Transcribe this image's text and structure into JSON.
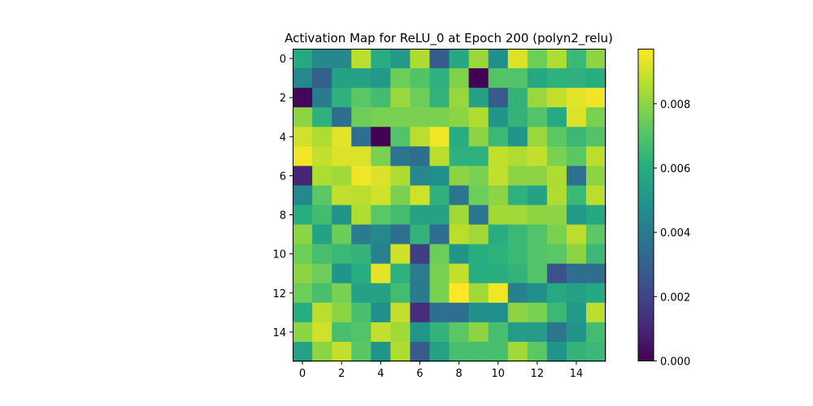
{
  "chart_data": {
    "type": "heatmap",
    "title": "Activation Map for ReLU_0 at Epoch 200 (polyn2_relu)",
    "colormap": "viridis",
    "x_ticks": [
      "0",
      "2",
      "4",
      "6",
      "8",
      "10",
      "12",
      "14"
    ],
    "y_ticks": [
      "0",
      "2",
      "4",
      "6",
      "8",
      "10",
      "12",
      "14"
    ],
    "vmin": 0,
    "vmax": 0.0097,
    "colorbar_ticks": [
      "0.000",
      "0.002",
      "0.004",
      "0.006",
      "0.008"
    ],
    "values": [
      [
        0.0058,
        0.0045,
        0.0045,
        0.0087,
        0.006,
        0.0052,
        0.0085,
        0.0028,
        0.0058,
        0.0082,
        0.0048,
        0.0092,
        0.0075,
        0.0085,
        0.0065,
        0.008
      ],
      [
        0.0045,
        0.003,
        0.0055,
        0.0055,
        0.0052,
        0.0075,
        0.007,
        0.0062,
        0.0078,
        0.0,
        0.007,
        0.007,
        0.0058,
        0.0062,
        0.0062,
        0.006
      ],
      [
        0.0002,
        0.004,
        0.0062,
        0.0072,
        0.0067,
        0.0082,
        0.0075,
        0.0063,
        0.0082,
        0.0055,
        0.0028,
        0.0063,
        0.0082,
        0.0088,
        0.0093,
        0.0095
      ],
      [
        0.008,
        0.0062,
        0.0035,
        0.0075,
        0.0077,
        0.0077,
        0.0077,
        0.0077,
        0.008,
        0.0085,
        0.005,
        0.0063,
        0.007,
        0.0058,
        0.0092,
        0.0077
      ],
      [
        0.009,
        0.0085,
        0.0093,
        0.0035,
        0.0,
        0.007,
        0.0087,
        0.0095,
        0.006,
        0.008,
        0.0065,
        0.005,
        0.0082,
        0.0072,
        0.0065,
        0.007
      ],
      [
        0.0095,
        0.0088,
        0.0092,
        0.0092,
        0.0077,
        0.0038,
        0.0035,
        0.0087,
        0.0062,
        0.0062,
        0.0088,
        0.0085,
        0.0088,
        0.0077,
        0.0072,
        0.0087
      ],
      [
        0.001,
        0.0085,
        0.0083,
        0.0095,
        0.0092,
        0.0085,
        0.0045,
        0.0048,
        0.008,
        0.0077,
        0.0088,
        0.008,
        0.008,
        0.0085,
        0.0035,
        0.008
      ],
      [
        0.0045,
        0.0072,
        0.0088,
        0.0087,
        0.009,
        0.0077,
        0.009,
        0.0062,
        0.0038,
        0.0075,
        0.008,
        0.0062,
        0.0055,
        0.0085,
        0.0065,
        0.0087
      ],
      [
        0.006,
        0.0067,
        0.005,
        0.0085,
        0.0072,
        0.0067,
        0.0055,
        0.0055,
        0.0083,
        0.0038,
        0.0083,
        0.0083,
        0.008,
        0.008,
        0.0052,
        0.0058
      ],
      [
        0.008,
        0.0055,
        0.0075,
        0.004,
        0.0045,
        0.0035,
        0.0063,
        0.0035,
        0.0087,
        0.0083,
        0.006,
        0.0065,
        0.007,
        0.0077,
        0.0087,
        0.0072
      ],
      [
        0.0075,
        0.0068,
        0.0065,
        0.0063,
        0.0043,
        0.009,
        0.0018,
        0.0075,
        0.005,
        0.006,
        0.0062,
        0.0065,
        0.007,
        0.0072,
        0.008,
        0.0065
      ],
      [
        0.008,
        0.0075,
        0.005,
        0.006,
        0.0093,
        0.0062,
        0.004,
        0.0077,
        0.0088,
        0.006,
        0.006,
        0.0063,
        0.007,
        0.0025,
        0.0035,
        0.0035
      ],
      [
        0.0075,
        0.0068,
        0.0077,
        0.0055,
        0.0055,
        0.0067,
        0.004,
        0.0077,
        0.0097,
        0.0083,
        0.0095,
        0.0042,
        0.0048,
        0.0058,
        0.0055,
        0.0058
      ],
      [
        0.006,
        0.0087,
        0.008,
        0.0068,
        0.0048,
        0.0088,
        0.0012,
        0.0035,
        0.0035,
        0.0048,
        0.0048,
        0.008,
        0.0077,
        0.0065,
        0.0052,
        0.0087
      ],
      [
        0.008,
        0.009,
        0.0068,
        0.007,
        0.0088,
        0.0083,
        0.005,
        0.0063,
        0.0072,
        0.008,
        0.0068,
        0.0053,
        0.0053,
        0.0038,
        0.005,
        0.0067
      ],
      [
        0.0055,
        0.008,
        0.0088,
        0.0072,
        0.005,
        0.0085,
        0.0028,
        0.0055,
        0.0068,
        0.0068,
        0.0068,
        0.0083,
        0.0072,
        0.005,
        0.0063,
        0.0065
      ]
    ]
  }
}
